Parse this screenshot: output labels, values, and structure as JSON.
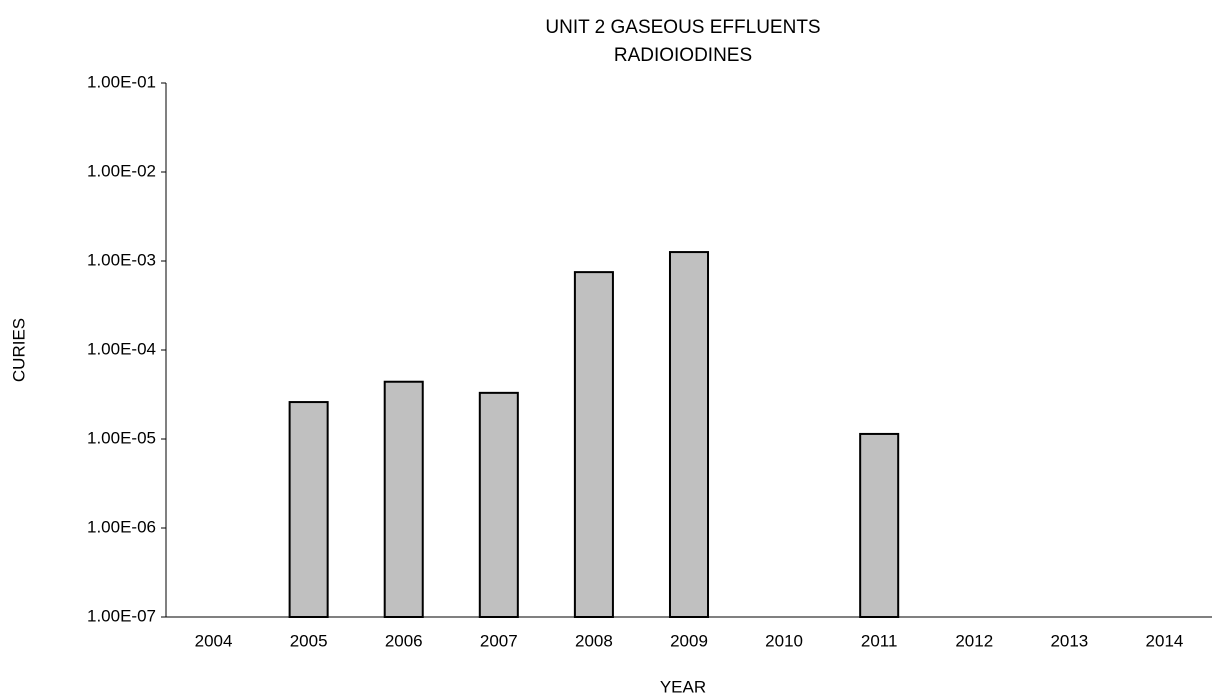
{
  "chart_data": {
    "type": "bar",
    "title": "UNIT 2 GASEOUS EFFLUENTS",
    "subtitle": "RADIOIODINES",
    "x_label": "YEAR",
    "y_label": "CURIES",
    "categories": [
      "2004",
      "2005",
      "2006",
      "2007",
      "2008",
      "2009",
      "2010",
      "2011",
      "2012",
      "2013",
      "2014"
    ],
    "values": [
      null,
      2.6e-05,
      4.4e-05,
      3.3e-05,
      0.00075,
      0.00126,
      null,
      1.14e-05,
      null,
      null,
      null
    ],
    "color": "#c0c0c0",
    "log_scale": true,
    "grid": false,
    "ylim": [
      1e-07,
      0.1
    ],
    "yticks": [
      {
        "value": 1e-07,
        "label": "1.00E-07"
      },
      {
        "value": 1e-06,
        "label": "1.00E-06"
      },
      {
        "value": 1e-05,
        "label": "1.00E-05"
      },
      {
        "value": 0.0001,
        "label": "1.00E-04"
      },
      {
        "value": 0.001,
        "label": "1.00E-03"
      },
      {
        "value": 0.01,
        "label": "1.00E-02"
      },
      {
        "value": 0.1,
        "label": "1.00E-01"
      }
    ]
  }
}
